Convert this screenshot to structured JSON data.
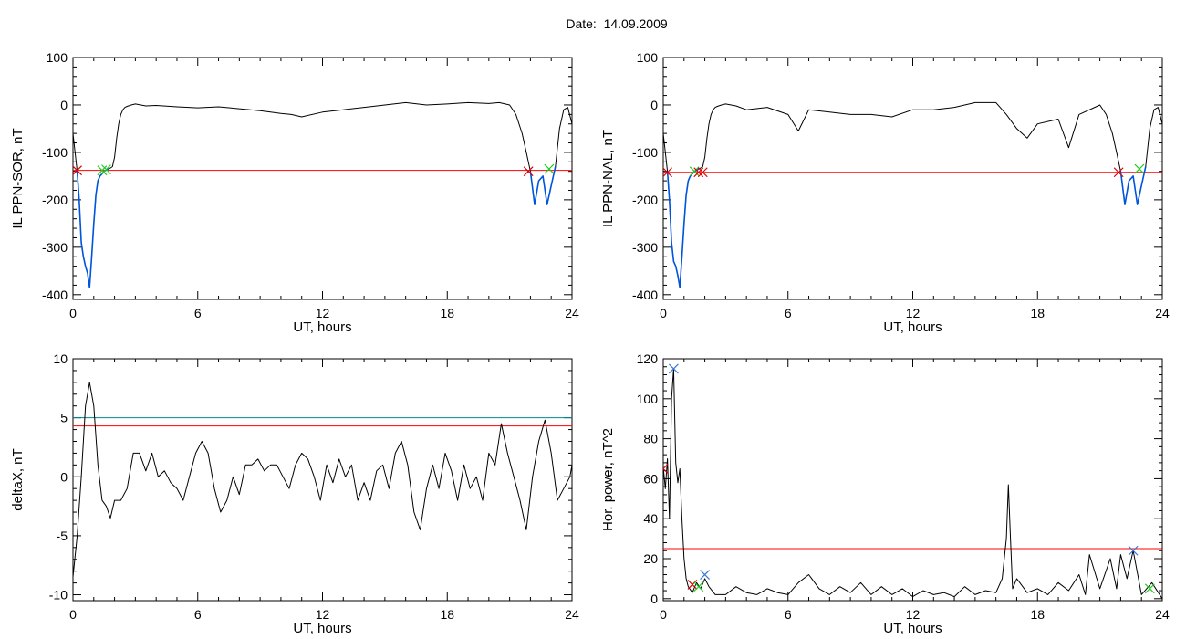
{
  "figure": {
    "title_label": "Date:",
    "title_value": "14.09.2009"
  },
  "chart_data": [
    {
      "type": "line",
      "title": "",
      "xlabel": "UT, hours",
      "ylabel": "IL PPN-SOR, nT",
      "xlim": [
        0,
        24
      ],
      "ylim": [
        -410,
        100
      ],
      "xticks": [
        0,
        6,
        12,
        18,
        24
      ],
      "yticks": [
        -400,
        -300,
        -200,
        -100,
        0,
        100
      ],
      "grid": false,
      "colors": {
        "main": "#000000",
        "threshold": "#ff0000",
        "event": "#0055dd",
        "cross_start": "#dd0000",
        "cross_end": "#22cc22"
      },
      "series": [
        {
          "role": "main",
          "x": [
            0,
            0.1,
            0.2,
            0.3,
            0.4,
            0.5,
            0.6,
            0.7,
            0.8,
            0.9,
            1.0,
            1.1,
            1.2,
            1.3,
            1.4,
            1.5,
            1.6,
            1.7,
            1.8,
            1.9,
            2.0,
            2.1,
            2.2,
            2.3,
            2.4,
            2.5,
            2.6,
            2.8,
            3.0,
            3.5,
            4,
            5,
            6,
            7,
            8,
            9,
            10,
            10.5,
            11,
            12,
            13,
            14,
            15,
            16,
            17,
            18,
            19,
            20,
            20.5,
            21,
            21.3,
            21.6,
            21.8,
            22.0,
            22.2,
            22.4,
            22.6,
            22.8,
            23.0,
            23.2,
            23.4,
            23.6,
            23.8,
            24
          ],
          "y": [
            -60,
            -100,
            -140,
            -200,
            -290,
            -320,
            -340,
            -355,
            -385,
            -320,
            -250,
            -190,
            -160,
            -150,
            -145,
            -140,
            -137,
            -135,
            -133,
            -130,
            -110,
            -70,
            -40,
            -20,
            -10,
            -5,
            -3,
            0,
            2,
            -2,
            -1,
            -4,
            -6,
            -4,
            -8,
            -12,
            -18,
            -20,
            -25,
            -15,
            -10,
            -5,
            0,
            5,
            0,
            2,
            5,
            3,
            5,
            0,
            -20,
            -60,
            -100,
            -140,
            -210,
            -160,
            -150,
            -210,
            -170,
            -130,
            -50,
            -10,
            -5,
            -40
          ]
        },
        {
          "role": "event",
          "x": [
            0.2,
            0.3,
            0.4,
            0.5,
            0.6,
            0.7,
            0.8,
            0.9,
            1.0,
            1.1,
            1.2,
            1.3,
            1.4,
            1.5,
            1.6,
            1.7
          ],
          "y": [
            -140,
            -200,
            -290,
            -320,
            -340,
            -355,
            -385,
            -320,
            -250,
            -190,
            -160,
            -150,
            -145,
            -140,
            -137,
            -135
          ]
        },
        {
          "role": "event",
          "x": [
            22.0,
            22.2,
            22.4,
            22.6,
            22.8,
            23.0,
            23.2
          ],
          "y": [
            -140,
            -210,
            -160,
            -150,
            -210,
            -170,
            -130
          ]
        }
      ],
      "threshold": -138,
      "markers": [
        {
          "x": 0.2,
          "y": -138,
          "role": "cross_start"
        },
        {
          "x": 1.4,
          "y": -138,
          "role": "cross_end"
        },
        {
          "x": 1.6,
          "y": -136,
          "role": "cross_end"
        },
        {
          "x": 21.9,
          "y": -140,
          "role": "cross_start"
        },
        {
          "x": 22.9,
          "y": -135,
          "role": "cross_end"
        }
      ]
    },
    {
      "type": "line",
      "title": "",
      "xlabel": "UT, hours",
      "ylabel": "IL PPN-NAL, nT",
      "xlim": [
        0,
        24
      ],
      "ylim": [
        -410,
        100
      ],
      "xticks": [
        0,
        6,
        12,
        18,
        24
      ],
      "yticks": [
        -400,
        -300,
        -200,
        -100,
        0,
        100
      ],
      "grid": false,
      "colors": {
        "main": "#000000",
        "threshold": "#ff0000",
        "event": "#0055dd",
        "cross_start": "#dd0000",
        "cross_end": "#22cc22"
      },
      "series": [
        {
          "role": "main",
          "x": [
            0,
            0.1,
            0.2,
            0.3,
            0.4,
            0.5,
            0.6,
            0.7,
            0.8,
            0.9,
            1.0,
            1.1,
            1.2,
            1.3,
            1.4,
            1.5,
            1.6,
            1.7,
            1.8,
            1.9,
            2.0,
            2.1,
            2.2,
            2.3,
            2.4,
            2.5,
            2.6,
            2.8,
            3.0,
            3.5,
            4,
            5,
            6,
            6.5,
            7,
            8,
            9,
            10,
            11,
            12,
            13,
            14,
            15,
            16,
            16.5,
            17,
            17.5,
            18,
            19,
            19.5,
            20,
            21,
            21.3,
            21.6,
            21.8,
            22.0,
            22.2,
            22.4,
            22.6,
            22.8,
            23.0,
            23.2,
            23.4,
            23.6,
            23.8,
            24
          ],
          "y": [
            -60,
            -100,
            -140,
            -200,
            -290,
            -330,
            -340,
            -360,
            -385,
            -320,
            -250,
            -190,
            -160,
            -150,
            -145,
            -140,
            -138,
            -135,
            -133,
            -130,
            -110,
            -70,
            -40,
            -20,
            -10,
            -5,
            -3,
            0,
            2,
            -2,
            -10,
            -5,
            -20,
            -55,
            -10,
            -15,
            -20,
            -20,
            -25,
            -10,
            -10,
            -5,
            5,
            5,
            -20,
            -50,
            -70,
            -40,
            -30,
            -90,
            -20,
            0,
            -20,
            -60,
            -100,
            -140,
            -210,
            -160,
            -150,
            -210,
            -170,
            -130,
            -50,
            -10,
            -5,
            -40
          ]
        },
        {
          "role": "event",
          "x": [
            0.2,
            0.3,
            0.4,
            0.5,
            0.6,
            0.7,
            0.8,
            0.9,
            1.0,
            1.1,
            1.2,
            1.3,
            1.4,
            1.5,
            1.6,
            1.7
          ],
          "y": [
            -140,
            -200,
            -290,
            -330,
            -340,
            -360,
            -385,
            -320,
            -250,
            -190,
            -160,
            -150,
            -145,
            -140,
            -138,
            -135
          ]
        },
        {
          "role": "event",
          "x": [
            22.0,
            22.2,
            22.4,
            22.6,
            22.8,
            23.0,
            23.2
          ],
          "y": [
            -140,
            -210,
            -160,
            -150,
            -210,
            -170,
            -130
          ]
        }
      ],
      "threshold": -142,
      "markers": [
        {
          "x": 0.2,
          "y": -142,
          "role": "cross_start"
        },
        {
          "x": 1.5,
          "y": -140,
          "role": "cross_end"
        },
        {
          "x": 1.7,
          "y": -142,
          "role": "cross_start"
        },
        {
          "x": 1.9,
          "y": -142,
          "role": "cross_start"
        },
        {
          "x": 21.9,
          "y": -142,
          "role": "cross_start"
        },
        {
          "x": 22.9,
          "y": -135,
          "role": "cross_end"
        }
      ]
    },
    {
      "type": "line",
      "title": "",
      "xlabel": "UT, hours",
      "ylabel": "deltaX, nT",
      "xlim": [
        0,
        24
      ],
      "ylim": [
        -10.5,
        10
      ],
      "xticks": [
        0,
        6,
        12,
        18,
        24
      ],
      "yticks": [
        -10,
        -5,
        0,
        5,
        10
      ],
      "grid": false,
      "colors": {
        "main": "#000000",
        "threshold": "#ff0000",
        "threshold2": "#008b8b"
      },
      "series": [
        {
          "role": "main",
          "x": [
            0,
            0.2,
            0.4,
            0.6,
            0.8,
            1.0,
            1.2,
            1.4,
            1.6,
            1.8,
            2.0,
            2.3,
            2.6,
            2.9,
            3.2,
            3.5,
            3.8,
            4.1,
            4.4,
            4.7,
            5.0,
            5.3,
            5.6,
            5.9,
            6.2,
            6.5,
            6.8,
            7.1,
            7.4,
            7.7,
            8.0,
            8.3,
            8.6,
            8.9,
            9.2,
            9.5,
            9.8,
            10.1,
            10.4,
            10.7,
            11.0,
            11.3,
            11.6,
            11.9,
            12.2,
            12.5,
            12.8,
            13.1,
            13.4,
            13.7,
            14.0,
            14.3,
            14.6,
            14.9,
            15.2,
            15.5,
            15.8,
            16.1,
            16.4,
            16.7,
            17.0,
            17.3,
            17.6,
            17.9,
            18.2,
            18.5,
            18.8,
            19.1,
            19.4,
            19.7,
            20.0,
            20.3,
            20.6,
            20.9,
            21.2,
            21.5,
            21.8,
            22.1,
            22.4,
            22.7,
            23.0,
            23.3,
            23.6,
            23.9,
            24
          ],
          "y": [
            -8.5,
            -5,
            0,
            6,
            8,
            6,
            1,
            -2,
            -2.5,
            -3.5,
            -2,
            -2,
            -1,
            2,
            2,
            0.5,
            2,
            0,
            0.5,
            -0.5,
            -1,
            -2,
            0,
            2,
            3,
            2,
            -1,
            -3,
            -2,
            0,
            -1.5,
            1,
            1,
            1.5,
            0.5,
            1,
            1,
            0,
            -1,
            1,
            2,
            1.5,
            0,
            -2,
            1,
            -0.5,
            1.5,
            0,
            1,
            -2,
            -0.5,
            -2,
            0.5,
            1,
            -1,
            2,
            3,
            1,
            -3,
            -4.5,
            -1,
            1,
            -1,
            2,
            0.5,
            -2,
            1,
            -1,
            0,
            -2,
            2,
            1,
            4.5,
            2,
            0,
            -2,
            -4.5,
            0,
            3,
            4.8,
            2,
            -2,
            -1,
            0,
            1
          ]
        }
      ],
      "thresholds": [
        {
          "value": 4.3,
          "role": "threshold"
        },
        {
          "value": 5.0,
          "role": "threshold2"
        }
      ]
    },
    {
      "type": "line",
      "title": "",
      "xlabel": "UT, hours",
      "ylabel": "Hor. power, nT^2",
      "xlim": [
        0,
        24
      ],
      "ylim": [
        -1,
        120
      ],
      "xticks": [
        0,
        6,
        12,
        18,
        24
      ],
      "yticks": [
        0,
        20,
        40,
        60,
        80,
        100,
        120
      ],
      "grid": false,
      "colors": {
        "main": "#000000",
        "threshold": "#ff0000",
        "peak": "#3377dd",
        "cross_start": "#dd0000",
        "cross_end": "#22cc22"
      },
      "series": [
        {
          "role": "main",
          "x": [
            0,
            0.1,
            0.2,
            0.3,
            0.4,
            0.5,
            0.6,
            0.7,
            0.8,
            0.9,
            1.0,
            1.1,
            1.2,
            1.4,
            1.6,
            1.8,
            2.0,
            2.2,
            2.5,
            3.0,
            3.5,
            4.0,
            4.5,
            5.0,
            5.5,
            6.0,
            6.5,
            7.0,
            7.5,
            8.0,
            8.5,
            9.0,
            9.5,
            10.0,
            10.5,
            11.0,
            11.5,
            12.0,
            12.5,
            13.0,
            13.5,
            14.0,
            14.5,
            15.0,
            15.5,
            16.0,
            16.3,
            16.5,
            16.6,
            16.7,
            16.8,
            17.0,
            17.5,
            18.0,
            18.5,
            19.0,
            19.5,
            20.0,
            20.3,
            20.5,
            21.0,
            21.5,
            21.8,
            22.0,
            22.3,
            22.6,
            23.0,
            23.5,
            24
          ],
          "y": [
            66,
            55,
            70,
            40,
            100,
            115,
            68,
            58,
            65,
            40,
            20,
            10,
            6,
            3,
            8,
            5,
            10,
            6,
            2,
            2,
            6,
            3,
            2,
            5,
            3,
            2,
            8,
            12,
            5,
            2,
            6,
            3,
            8,
            2,
            6,
            2,
            5,
            1,
            4,
            2,
            3,
            1,
            6,
            2,
            4,
            3,
            10,
            30,
            57,
            30,
            5,
            10,
            3,
            5,
            2,
            8,
            4,
            12,
            2,
            22,
            5,
            20,
            5,
            22,
            10,
            24,
            2,
            8,
            0
          ]
        }
      ],
      "threshold": 25,
      "markers": [
        {
          "x": 0.0,
          "y": 65,
          "role": "cross_start"
        },
        {
          "x": 0.5,
          "y": 115,
          "role": "peak"
        },
        {
          "x": 1.4,
          "y": 7,
          "role": "cross_start"
        },
        {
          "x": 1.7,
          "y": 6,
          "role": "cross_end"
        },
        {
          "x": 2.0,
          "y": 12,
          "role": "peak"
        },
        {
          "x": 22.6,
          "y": 24,
          "role": "peak"
        },
        {
          "x": 23.4,
          "y": 5,
          "role": "cross_end"
        }
      ]
    }
  ]
}
